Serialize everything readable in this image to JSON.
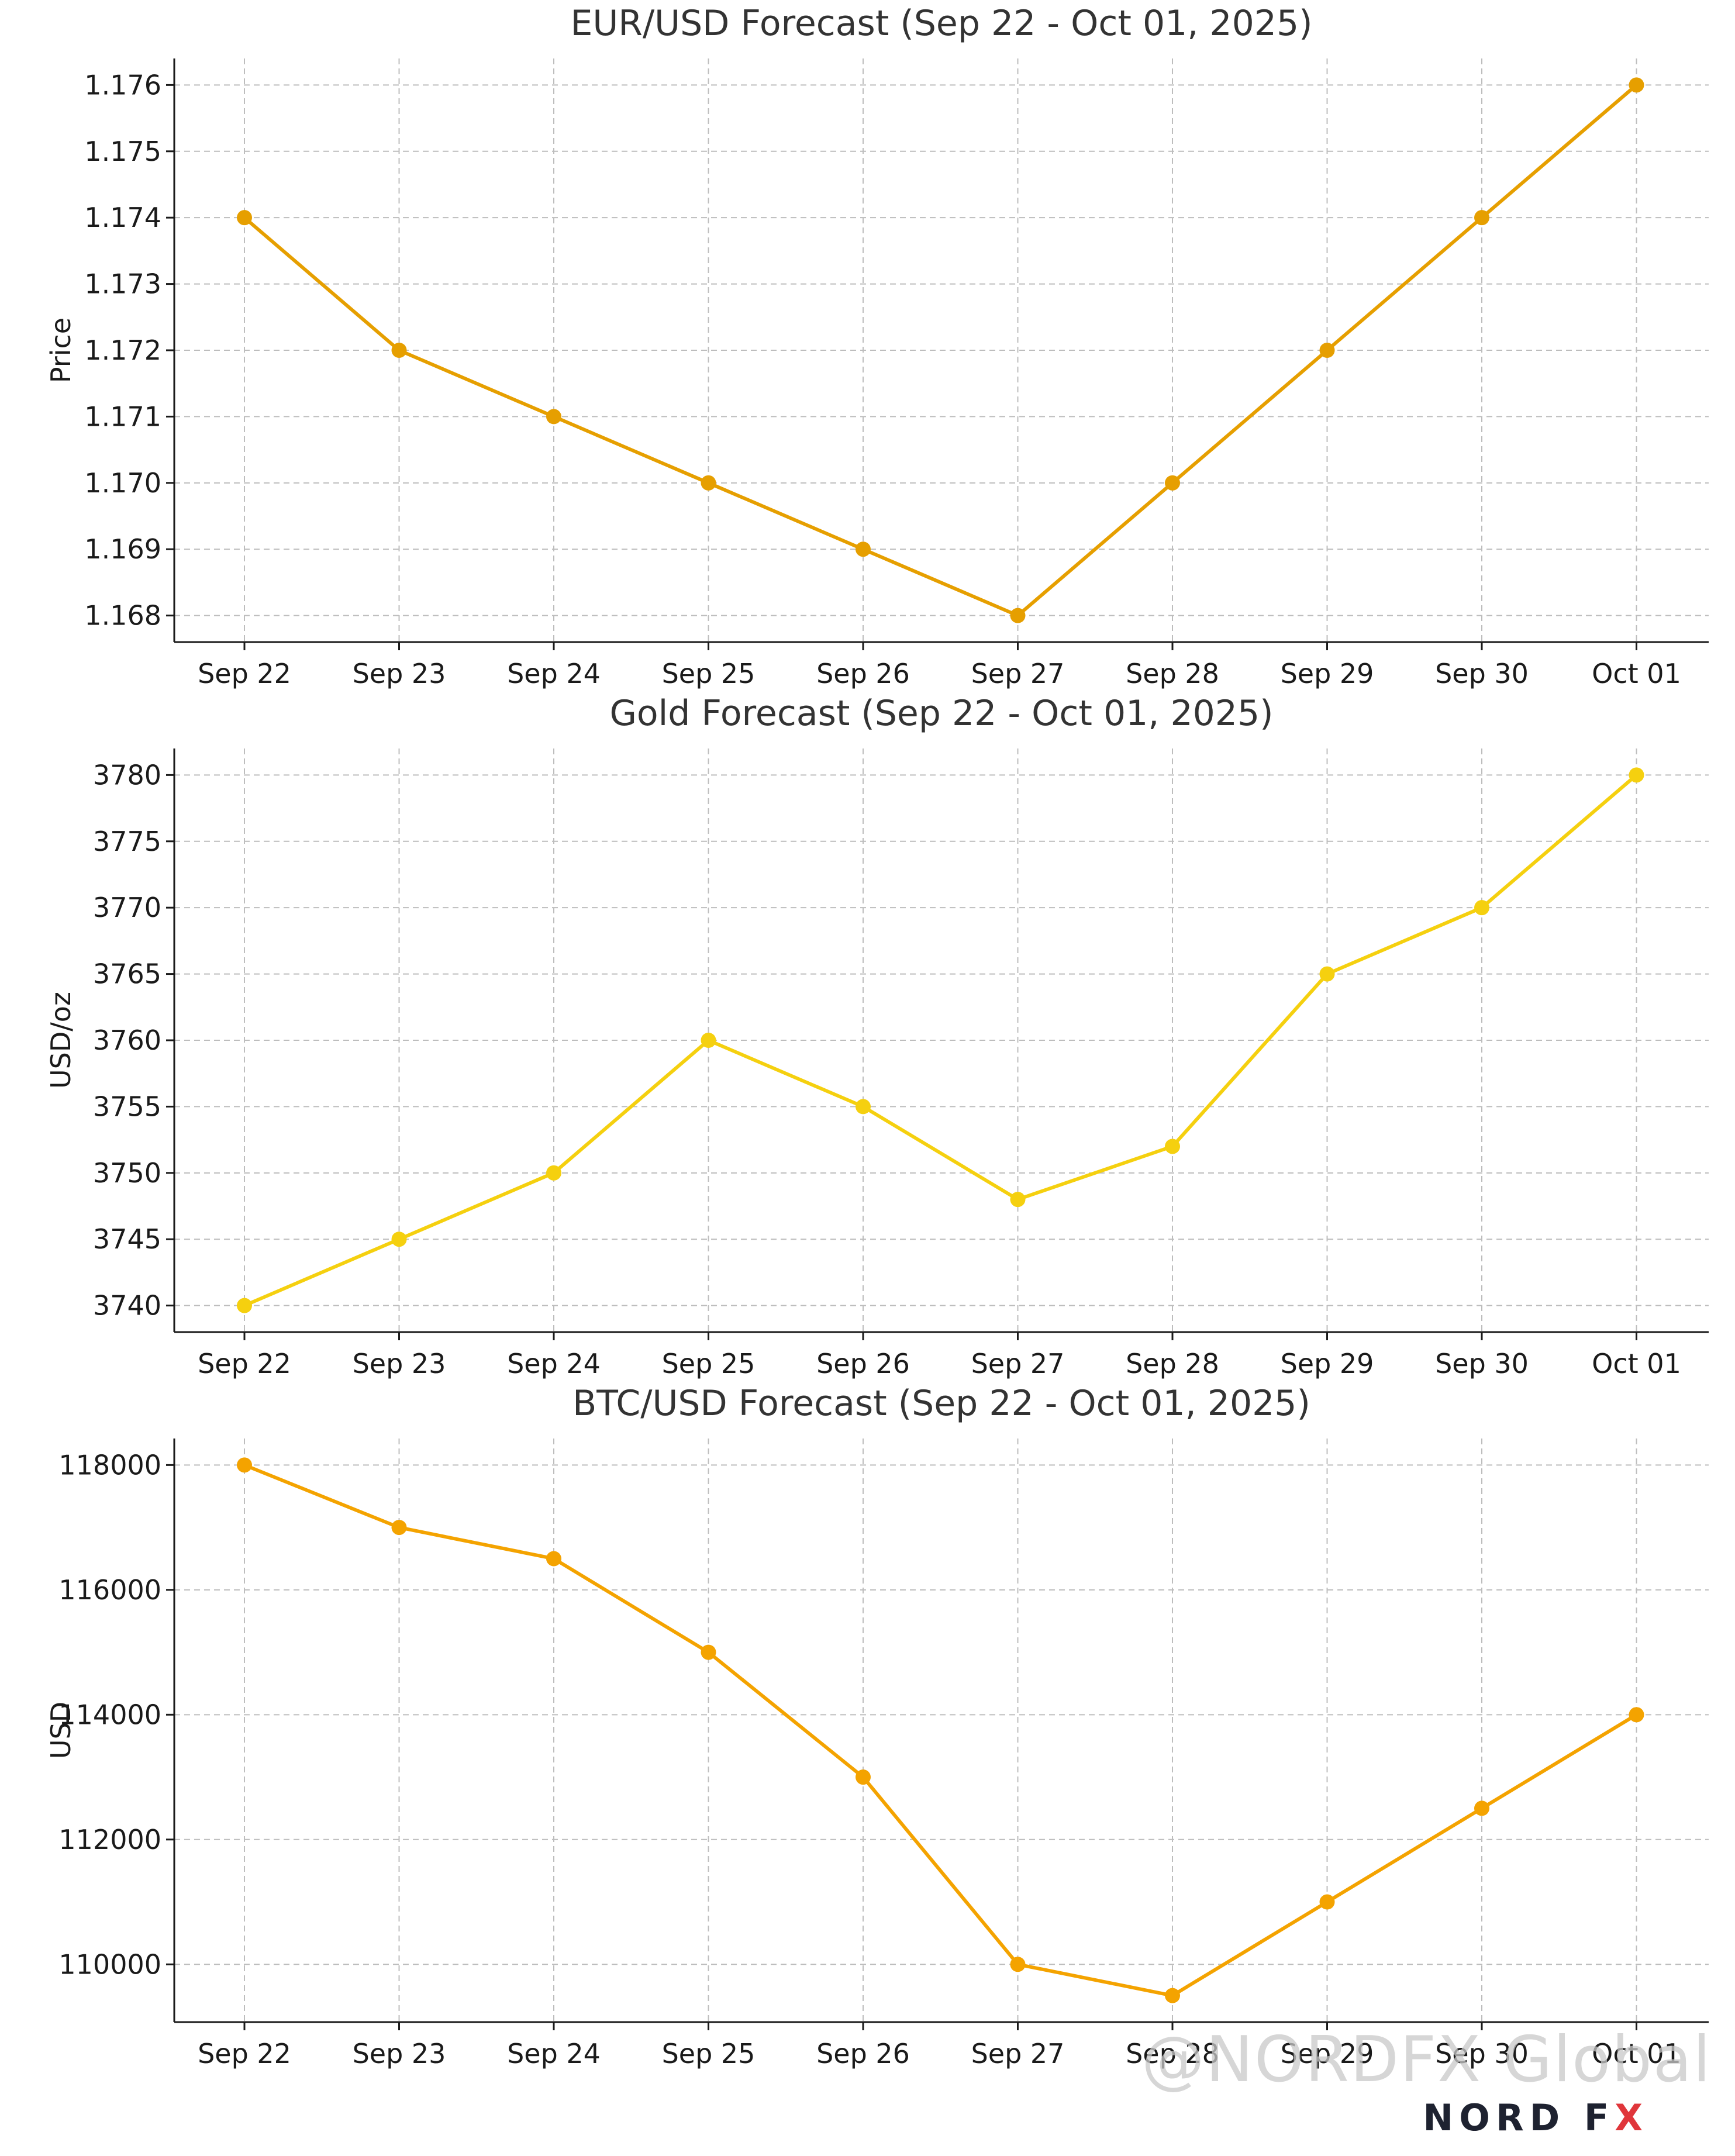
{
  "chart_data": [
    {
      "type": "line",
      "title": "EUR/USD Forecast (Sep 22 - Oct 01, 2025)",
      "xlabel": "",
      "ylabel": "Price",
      "categories": [
        "Sep 22",
        "Sep 23",
        "Sep 24",
        "Sep 25",
        "Sep 26",
        "Sep 27",
        "Sep 28",
        "Sep 29",
        "Sep 30",
        "Oct 01"
      ],
      "series": [
        {
          "values": [
            1.174,
            1.172,
            1.171,
            1.17,
            1.169,
            1.168,
            1.17,
            1.172,
            1.174,
            1.176
          ],
          "color": "#e69f00"
        }
      ],
      "ylim": [
        1.1676,
        1.1764
      ],
      "yticks": [
        1.168,
        1.169,
        1.17,
        1.171,
        1.172,
        1.173,
        1.174,
        1.175,
        1.176
      ],
      "ytick_labels": [
        "1.168",
        "1.169",
        "1.170",
        "1.171",
        "1.172",
        "1.173",
        "1.174",
        "1.175",
        "1.176"
      ],
      "grid": true
    },
    {
      "type": "line",
      "title": "Gold Forecast (Sep 22 - Oct 01, 2025)",
      "xlabel": "",
      "ylabel": "USD/oz",
      "categories": [
        "Sep 22",
        "Sep 23",
        "Sep 24",
        "Sep 25",
        "Sep 26",
        "Sep 27",
        "Sep 28",
        "Sep 29",
        "Sep 30",
        "Oct 01"
      ],
      "series": [
        {
          "values": [
            3740,
            3745,
            3750,
            3760,
            3755,
            3748,
            3752,
            3765,
            3770,
            3780
          ],
          "color": "#f5d00f"
        }
      ],
      "ylim": [
        3738,
        3782
      ],
      "yticks": [
        3740,
        3745,
        3750,
        3755,
        3760,
        3765,
        3770,
        3775,
        3780
      ],
      "ytick_labels": [
        "3740",
        "3745",
        "3750",
        "3755",
        "3760",
        "3765",
        "3770",
        "3775",
        "3780"
      ],
      "grid": true
    },
    {
      "type": "line",
      "title": "BTC/USD Forecast (Sep 22 - Oct 01, 2025)",
      "xlabel": "",
      "ylabel": "USD",
      "categories": [
        "Sep 22",
        "Sep 23",
        "Sep 24",
        "Sep 25",
        "Sep 26",
        "Sep 27",
        "Sep 28",
        "Sep 29",
        "Sep 30",
        "Oct 01"
      ],
      "series": [
        {
          "values": [
            118000,
            117000,
            116500,
            115000,
            113000,
            110000,
            109500,
            111000,
            112500,
            114000
          ],
          "color": "#f4a300"
        }
      ],
      "ylim": [
        109075,
        118425
      ],
      "yticks": [
        110000,
        112000,
        114000,
        116000,
        118000
      ],
      "ytick_labels": [
        "110000",
        "112000",
        "114000",
        "116000",
        "118000"
      ],
      "grid": true
    }
  ],
  "watermark": {
    "text": "@NORDFX Global",
    "brand_nord": "NORD",
    "brand_f": "F",
    "brand_x": "X"
  }
}
